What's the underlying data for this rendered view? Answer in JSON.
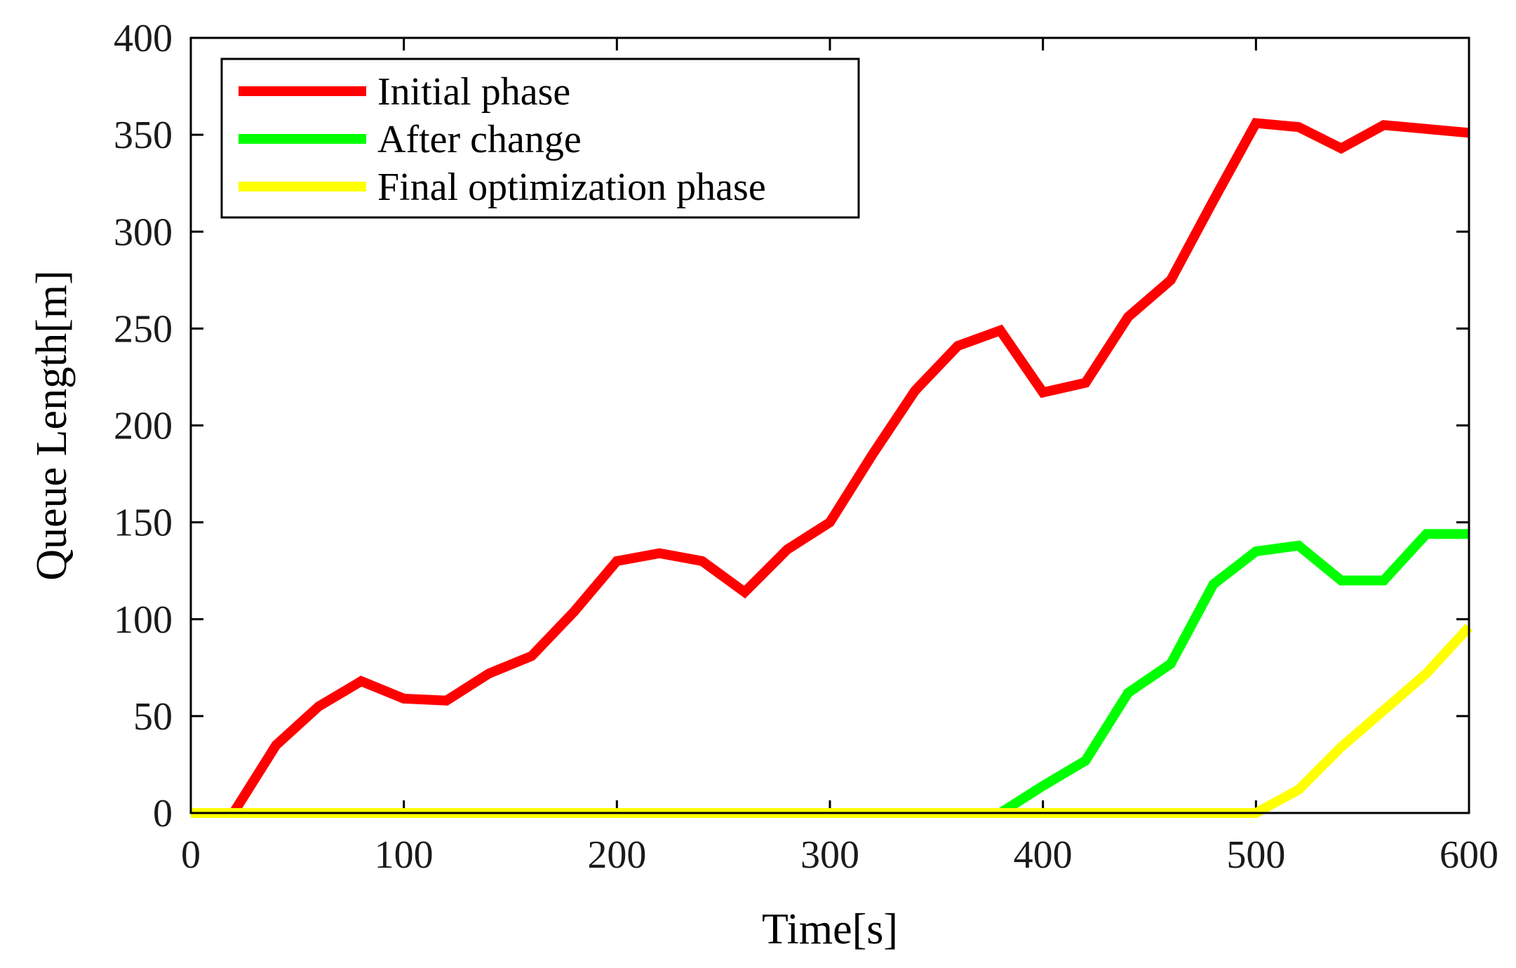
{
  "chart_data": {
    "type": "line",
    "title": "",
    "xlabel": "Time[s]",
    "ylabel": "Queue Length[m]",
    "xlim": [
      0,
      600
    ],
    "ylim": [
      0,
      400
    ],
    "xticks": [
      0,
      100,
      200,
      300,
      400,
      500,
      600
    ],
    "yticks": [
      0,
      50,
      100,
      150,
      200,
      250,
      300,
      350,
      400
    ],
    "xtick_labels": [
      "0",
      "100",
      "200",
      "300",
      "400",
      "500",
      "600"
    ],
    "ytick_labels": [
      "0",
      "50",
      "100",
      "150",
      "200",
      "250",
      "300",
      "350",
      "400"
    ],
    "grid": false,
    "legend_position": "top-left",
    "series": [
      {
        "name": "Initial phase",
        "color": "#ff0000",
        "x": [
          0,
          20,
          40,
          60,
          80,
          100,
          120,
          140,
          160,
          180,
          200,
          220,
          240,
          260,
          280,
          300,
          320,
          340,
          360,
          380,
          400,
          420,
          440,
          460,
          480,
          500,
          520,
          540,
          560,
          580,
          600
        ],
        "y": [
          0,
          0,
          35,
          55,
          68,
          59,
          58,
          72,
          81,
          104,
          130,
          134,
          130,
          114,
          136,
          150,
          185,
          218,
          241,
          249,
          217,
          222,
          256,
          275,
          316,
          356,
          354,
          343,
          355,
          353,
          351
        ]
      },
      {
        "name": "After change",
        "color": "#00ff00",
        "x": [
          0,
          380,
          400,
          420,
          440,
          460,
          480,
          500,
          520,
          540,
          560,
          580,
          600
        ],
        "y": [
          0,
          0,
          14,
          27,
          62,
          77,
          118,
          135,
          138,
          120,
          120,
          144,
          144
        ]
      },
      {
        "name": "Final optimization phase",
        "color": "#ffff00",
        "x": [
          0,
          500,
          520,
          540,
          560,
          580,
          600
        ],
        "y": [
          0,
          0,
          12,
          34,
          53,
          72,
          96
        ]
      }
    ]
  }
}
